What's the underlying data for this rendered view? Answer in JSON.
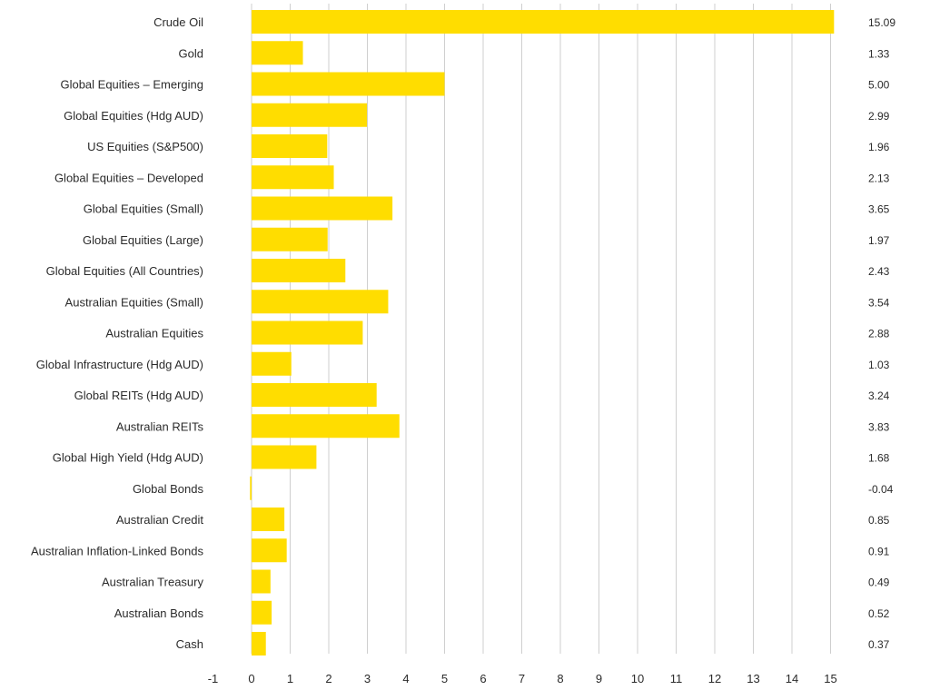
{
  "chart_data": {
    "type": "bar",
    "orientation": "horizontal",
    "title": "",
    "xlabel": "",
    "ylabel": "",
    "xlim": [
      -1,
      15
    ],
    "grid": true,
    "bar_color": "#FFDD00",
    "categories": [
      "Crude Oil",
      "Gold",
      "Global Equities – Emerging",
      "Global Equities (Hdg AUD)",
      "US Equities (S&P500)",
      "Global Equities – Developed",
      "Global Equities (Small)",
      "Global Equities (Large)",
      "Global Equities (All Countries)",
      "Australian Equities (Small)",
      "Australian Equities",
      "Global Infrastructure (Hdg AUD)",
      "Global REITs (Hdg AUD)",
      "Australian REITs",
      "Global High Yield (Hdg AUD)",
      "Global Bonds",
      "Australian Credit",
      "Australian Inflation-Linked Bonds",
      "Australian Treasury",
      "Australian Bonds",
      "Cash"
    ],
    "values": [
      15.09,
      1.33,
      5.0,
      2.99,
      1.96,
      2.13,
      3.65,
      1.97,
      2.43,
      3.54,
      2.88,
      1.03,
      3.24,
      3.83,
      1.68,
      -0.04,
      0.85,
      0.91,
      0.49,
      0.52,
      0.37
    ],
    "value_labels": [
      "15.09",
      "1.33",
      "5.00",
      "2.99",
      "1.96",
      "2.13",
      "3.65",
      "1.97",
      "2.43",
      "3.54",
      "2.88",
      "1.03",
      "3.24",
      "3.83",
      "1.68",
      "-0.04",
      "0.85",
      "0.91",
      "0.49",
      "0.52",
      "0.37"
    ],
    "x_ticks": [
      -1,
      0,
      1,
      2,
      3,
      4,
      5,
      6,
      7,
      8,
      9,
      10,
      11,
      12,
      13,
      14,
      15
    ]
  }
}
